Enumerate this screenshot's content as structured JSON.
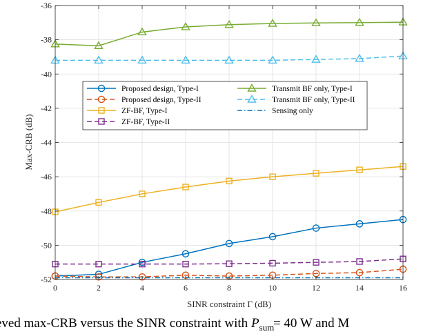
{
  "chart_data": {
    "type": "line",
    "xlabel": "SINR constraint Γ (dB)",
    "ylabel": "Max-CRB (dB)",
    "xlim": [
      0,
      16
    ],
    "ylim": [
      -52,
      -36
    ],
    "xticks": [
      0,
      2,
      4,
      6,
      8,
      10,
      12,
      14,
      16
    ],
    "yticks": [
      -36,
      -38,
      -40,
      -42,
      -44,
      -46,
      -48,
      -50,
      -52
    ],
    "grid": true,
    "legend_position": "center",
    "x": [
      0,
      2,
      4,
      6,
      8,
      10,
      12,
      14,
      16
    ],
    "series": [
      {
        "name": "Proposed design, Type-I",
        "color": "#0072BD",
        "dash": "solid",
        "marker": "circle",
        "values": [
          -51.8,
          -51.7,
          -51.0,
          -50.5,
          -49.9,
          -49.5,
          -49.0,
          -48.75,
          -48.5
        ]
      },
      {
        "name": "Proposed design, Type-II",
        "color": "#D95319",
        "dash": "dashed",
        "marker": "circle",
        "values": [
          -51.8,
          -51.85,
          -51.85,
          -51.75,
          -51.8,
          -51.75,
          -51.65,
          -51.6,
          -51.4
        ]
      },
      {
        "name": "ZF-BF, Type-I",
        "color": "#EDB120",
        "dash": "solid",
        "marker": "square",
        "values": [
          -48.05,
          -47.5,
          -47.0,
          -46.6,
          -46.25,
          -46.0,
          -45.8,
          -45.6,
          -45.4
        ]
      },
      {
        "name": "ZF-BF, Type-II",
        "color": "#7E2F8E",
        "dash": "dashed",
        "marker": "square",
        "values": [
          -51.1,
          -51.1,
          -51.1,
          -51.1,
          -51.08,
          -51.05,
          -51.0,
          -50.95,
          -50.8
        ]
      },
      {
        "name": "Transmit BF only, Type-I",
        "color": "#77AC30",
        "dash": "solid",
        "marker": "triangle",
        "values": [
          -38.25,
          -38.35,
          -37.55,
          -37.25,
          -37.12,
          -37.05,
          -37.02,
          -37.0,
          -36.97
        ]
      },
      {
        "name": "Transmit BF only, Type-II",
        "color": "#4DBEEE",
        "dash": "dashed",
        "marker": "triangle",
        "values": [
          -39.2,
          -39.2,
          -39.2,
          -39.2,
          -39.2,
          -39.2,
          -39.15,
          -39.1,
          -38.95
        ]
      },
      {
        "name": "Sensing only",
        "color": "#0072BD",
        "dash": "dashdot",
        "marker": "none",
        "values": [
          -51.9,
          -51.9,
          -51.9,
          -51.9,
          -51.9,
          -51.9,
          -51.9,
          -51.9,
          -51.9
        ]
      }
    ]
  },
  "caption": {
    "text": "eved max-CRB versus the SINR constraint with P",
    "sub": "sum",
    "tail": " = 40 W and M"
  }
}
